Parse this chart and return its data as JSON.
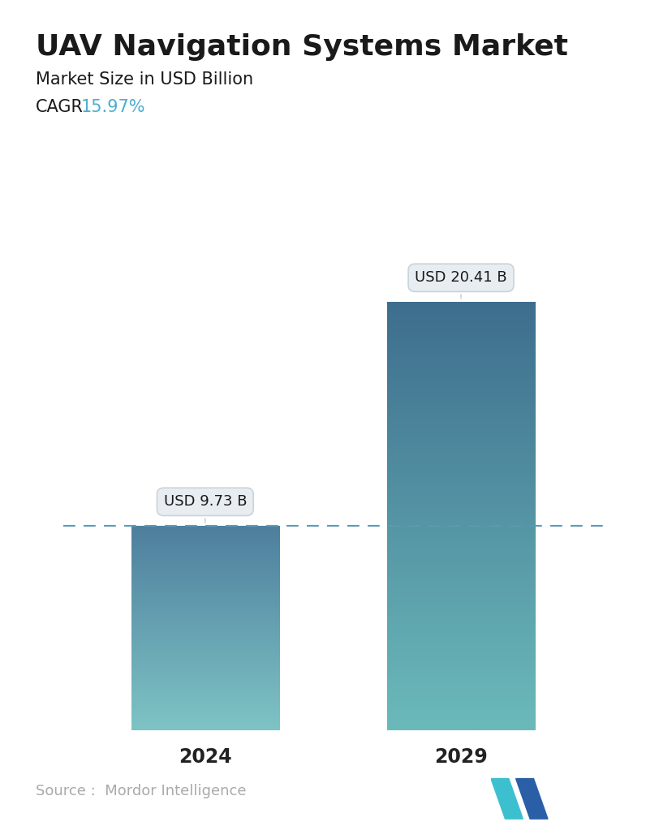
{
  "title": "UAV Navigation Systems Market",
  "subtitle": "Market Size in USD Billion",
  "cagr_label": "CAGR",
  "cagr_value": "15.97%",
  "cagr_color": "#4BAED0",
  "categories": [
    "2024",
    "2029"
  ],
  "values": [
    9.73,
    20.41
  ],
  "labels": [
    "USD 9.73 B",
    "USD 20.41 B"
  ],
  "bar_top_color_1": "#4E7F9E",
  "bar_bottom_color_1": "#7EC4C4",
  "bar_top_color_2": "#3E6E8E",
  "bar_bottom_color_2": "#6BBABA",
  "dashed_line_color": "#5A9AB8",
  "background_color": "#FFFFFF",
  "source_text": "Source :  Mordor Intelligence",
  "source_color": "#AAAAAA",
  "title_fontsize": 26,
  "subtitle_fontsize": 15,
  "cagr_fontsize": 15,
  "label_fontsize": 13,
  "xtick_fontsize": 17,
  "source_fontsize": 13,
  "ylim_max": 24,
  "bar_positions": [
    0.27,
    0.72
  ],
  "bar_width": 0.26
}
